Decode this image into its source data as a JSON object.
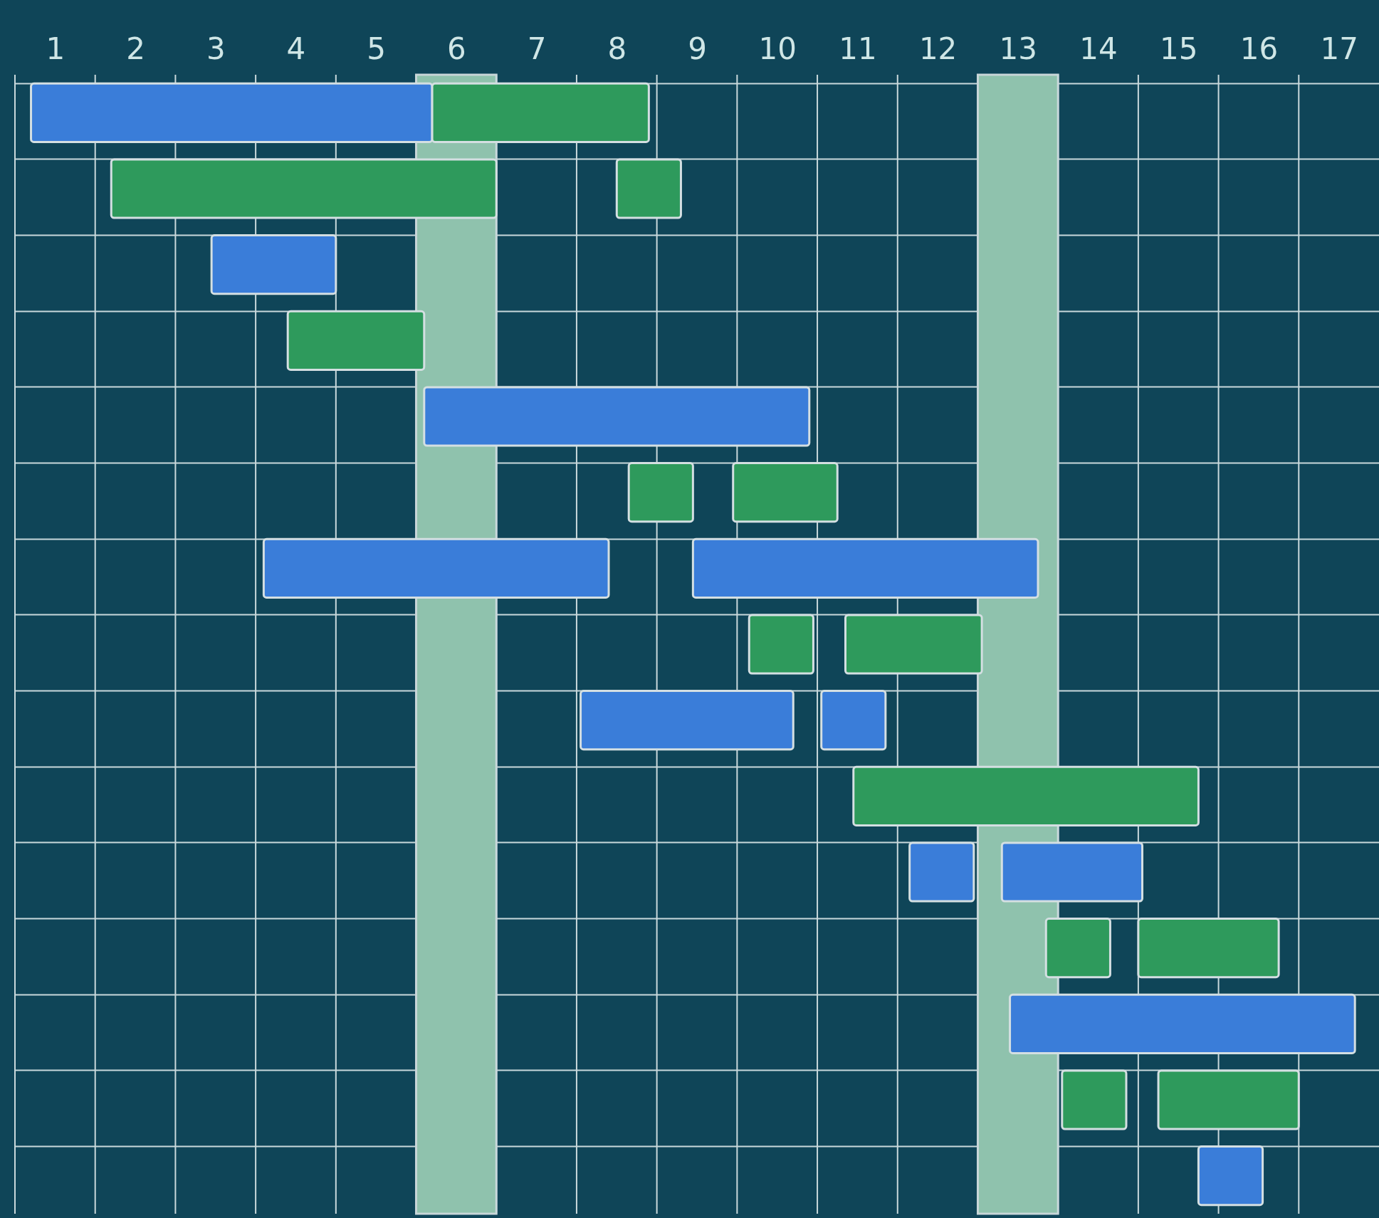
{
  "chart_data": {
    "type": "bar",
    "orientation": "horizontal",
    "categories": [
      null,
      null,
      null,
      null,
      null,
      null,
      null,
      null,
      null,
      null,
      null,
      null,
      null,
      null,
      null
    ],
    "series": [
      {
        "color": "#3a7dd9",
        "base": [
          0.7,
          null,
          2.95,
          null,
          5.6,
          null,
          3.6,
          null,
          7.55,
          null,
          11.65,
          null,
          12.9,
          null,
          15.25
        ],
        "values": [
          5.0,
          null,
          1.55,
          null,
          4.8,
          null,
          4.3,
          null,
          2.65,
          null,
          0.8,
          null,
          4.3,
          null,
          0.8
        ]
      },
      {
        "color": "#3a7dd9",
        "base": [
          null,
          null,
          null,
          null,
          null,
          null,
          8.95,
          null,
          10.55,
          null,
          12.8,
          null,
          null,
          null,
          null
        ],
        "values": [
          null,
          null,
          null,
          null,
          null,
          null,
          4.3,
          null,
          0.8,
          null,
          1.75,
          null,
          null,
          null,
          null
        ]
      },
      {
        "color": "#2e9a5c",
        "base": [
          5.7,
          1.7,
          null,
          3.9,
          null,
          8.15,
          null,
          9.65,
          null,
          10.95,
          null,
          13.35,
          null,
          13.55,
          null
        ],
        "values": [
          2.7,
          4.8,
          null,
          1.7,
          null,
          0.8,
          null,
          0.8,
          null,
          4.3,
          null,
          0.8,
          null,
          0.8,
          null
        ]
      },
      {
        "color": "#2e9a5c",
        "base": [
          null,
          8.0,
          null,
          null,
          null,
          9.45,
          null,
          10.85,
          null,
          null,
          null,
          14.5,
          null,
          14.75,
          null
        ],
        "values": [
          null,
          0.8,
          null,
          null,
          null,
          1.3,
          null,
          1.7,
          null,
          null,
          null,
          1.75,
          null,
          1.75,
          null
        ]
      }
    ],
    "xlim": [
      0.5,
      17.5
    ],
    "xticks": [
      1,
      2,
      3,
      4,
      5,
      6,
      7,
      8,
      9,
      10,
      11,
      12,
      13,
      14,
      15,
      16,
      17,
      {
        "value": 0.5,
        "label": null
      },
      {
        "value": 1.5,
        "label": null
      },
      {
        "value": 2.5,
        "label": null
      },
      {
        "value": 3.5,
        "label": null
      },
      {
        "value": 4.5,
        "label": null
      },
      {
        "value": 6.5,
        "label": null
      },
      {
        "value": 7.5,
        "label": null
      },
      {
        "value": 8.5,
        "label": null
      },
      {
        "value": 9.5,
        "label": null
      },
      {
        "value": 10.5,
        "label": null
      },
      {
        "value": 11.5,
        "label": null
      },
      {
        "value": 13.5,
        "label": null
      },
      {
        "value": 14.5,
        "label": null
      },
      {
        "value": 15.5,
        "label": null
      },
      {
        "value": 16.5,
        "label": null
      }
    ],
    "bands": [
      {
        "axis": "x",
        "from": 5.5,
        "to": 6.5,
        "color": "#8fc2ad"
      },
      {
        "axis": "x",
        "from": 12.5,
        "to": 13.5,
        "color": "#8fc2ad"
      }
    ],
    "grid": true
  }
}
